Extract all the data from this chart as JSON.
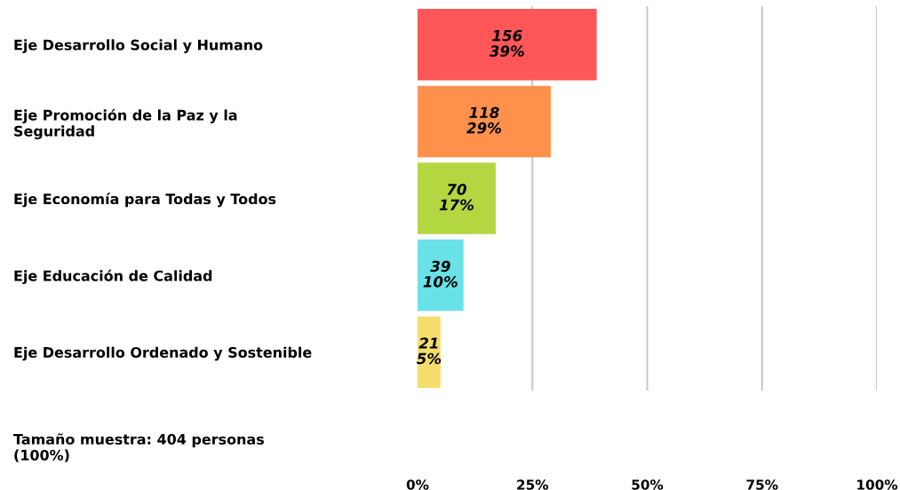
{
  "chart_data": {
    "type": "bar",
    "orientation": "horizontal",
    "categories": [
      "Eje Desarrollo Social y Humano",
      "Eje Promoción de la Paz y la\nSeguridad",
      "Eje Economía para Todas y Todos",
      "Eje Educación de Calidad",
      "Eje Desarrollo Ordenado y Sostenible"
    ],
    "values": [
      39,
      29,
      17,
      10,
      5
    ],
    "colors": [
      "#ff5757",
      "#ff914d",
      "#b4d641",
      "#68e2e6",
      "#f5dd6c"
    ],
    "value_labels": [
      "156\n39%",
      "118\n29%",
      "70\n17%",
      "39\n10%",
      "21\n5%"
    ],
    "xlim": [
      0,
      100
    ],
    "xticks": [
      {
        "value": 0,
        "label": "0%"
      },
      {
        "value": 25,
        "label": "25%"
      },
      {
        "value": 50,
        "label": "50%"
      },
      {
        "value": 75,
        "label": "75%"
      },
      {
        "value": 100,
        "label": "100%"
      }
    ],
    "grid": "x",
    "annotations": [
      "Tamaño muestra: 404 personas\n(100%)"
    ]
  }
}
